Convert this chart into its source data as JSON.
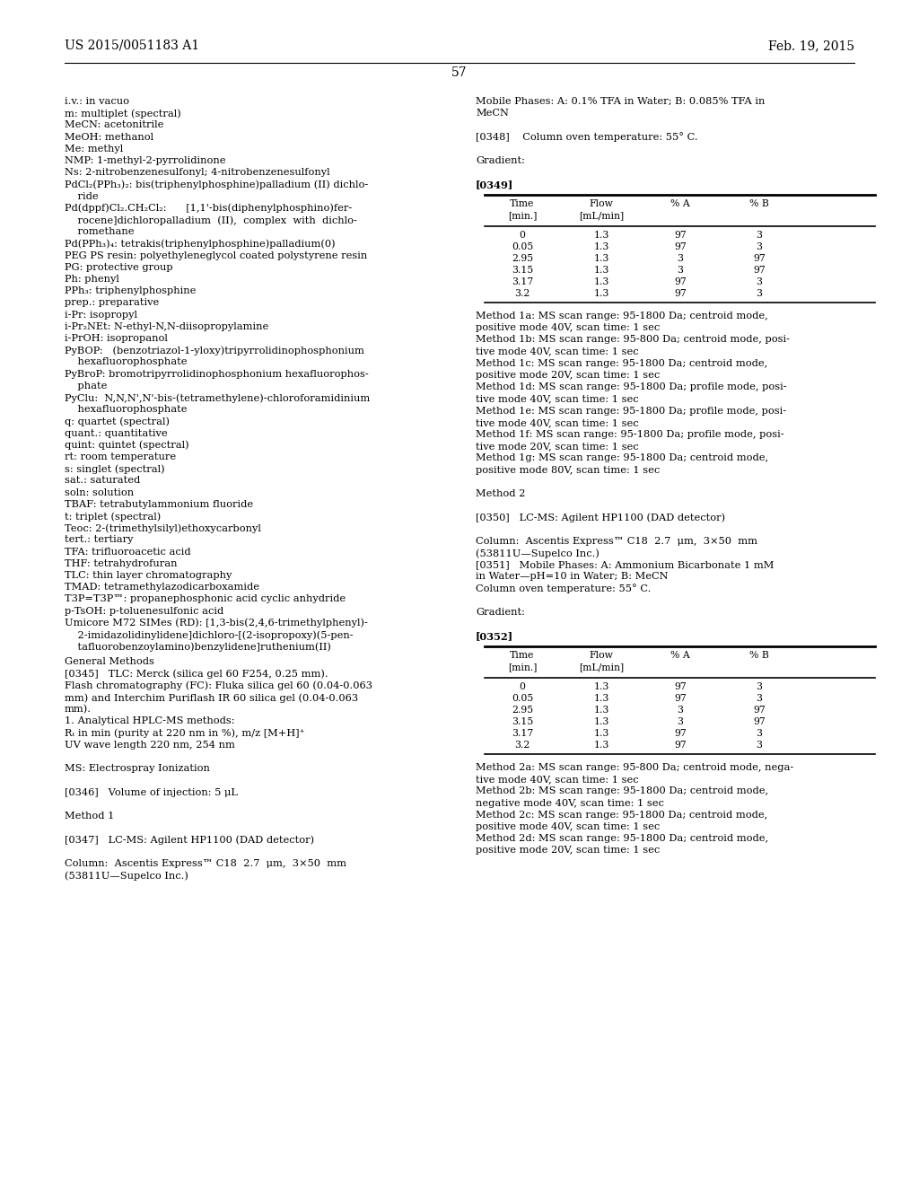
{
  "page_number": "57",
  "patent_number": "US 2015/0051183 A1",
  "patent_date": "Feb. 19, 2015",
  "bg_color": "#ffffff",
  "left_col_lines": [
    "i.v.: in vacuo",
    "m: multiplet (spectral)",
    "MeCN: acetonitrile",
    "MeOH: methanol",
    "Me: methyl",
    "NMP: 1-methyl-2-pyrrolidinone",
    "Ns: 2-nitrobenzenesulfonyl; 4-nitrobenzenesulfonyl",
    "PdCl₂(PPh₃)₂: bis(triphenylphosphine)palladium (II) dichlo-",
    "    ride",
    "Pd(dppf)Cl₂.CH₂Cl₂:      [1,1'-bis(diphenylphosphino)fer-",
    "    rocene]dichloropalladium  (II),  complex  with  dichlo-",
    "    romethane",
    "Pd(PPh₃)₄: tetrakis(triphenylphosphine)palladium(0)",
    "PEG PS resin: polyethyleneglycol coated polystyrene resin",
    "PG: protective group",
    "Ph: phenyl",
    "PPh₃: triphenylphosphine",
    "prep.: preparative",
    "i-Pr: isopropyl",
    "i-Pr₂NEt: N-ethyl-N,N-diisopropylamine",
    "i-PrOH: isopropanol",
    "PyBOP:   (benzotriazol-1-yloxy)tripyrrolidinophosphonium",
    "    hexafluorophosphate",
    "PyBroP: bromotripyrrolidinophosphonium hexafluorophos-",
    "    phate",
    "PyClu:  N,N,N',N'-bis-(tetramethylene)-chloroforamidinium",
    "    hexafluorophosphate",
    "q: quartet (spectral)",
    "quant.: quantitative",
    "quint: quintet (spectral)",
    "rt: room temperature",
    "s: singlet (spectral)",
    "sat.: saturated",
    "soln: solution",
    "TBAF: tetrabutylammonium fluoride",
    "t: triplet (spectral)",
    "Teoc: 2-(trimethylsilyl)ethoxycarbonyl",
    "tert.: tertiary",
    "TFA: trifluoroacetic acid",
    "THF: tetrahydrofuran",
    "TLC: thin layer chromatography",
    "TMAD: tetramethylazodicarboxamide",
    "T3P=T3P™: propanephosphonic acid cyclic anhydride",
    "p-TsOH: p-toluenesulfonic acid",
    "Umicore M72 SIMes (RD): [1,3-bis(2,4,6-trimethylphenyl)-",
    "    2-imidazolidinylidene]dichloro-[(2-isopropoxy)(5-pen-",
    "    tafluorobenzoylamino)benzylidene]ruthenium(II)"
  ],
  "gm_lines": [
    "General Methods",
    "[0345]   TLC: Merck (silica gel 60 F254, 0.25 mm).",
    "Flash chromatography (FC): Fluka silica gel 60 (0.04-0.063",
    "mm) and Interchim Puriflash IR 60 silica gel (0.04-0.063",
    "mm).",
    "1. Analytical HPLC-MS methods:",
    "Rₜ in min (purity at 220 nm in %), m/z [M+H]⁺",
    "UV wave length 220 nm, 254 nm",
    "",
    "MS: Electrospray Ionization",
    "",
    "[0346]   Volume of injection: 5 μL",
    "",
    "Method 1",
    "",
    "[0347]   LC-MS: Agilent HP1100 (DAD detector)",
    "",
    "Column:  Ascentis Express™ C18  2.7  μm,  3×50  mm",
    "(53811U—Supelco Inc.)"
  ],
  "right_lines_top": [
    "Mobile Phases: A: 0.1% TFA in Water; B: 0.085% TFA in",
    "MeCN",
    "",
    "[0348]    Column oven temperature: 55° C.",
    "",
    "Gradient:",
    "",
    "[0349]"
  ],
  "table1_data": [
    [
      "0",
      "1.3",
      "97",
      "3"
    ],
    [
      "0.05",
      "1.3",
      "97",
      "3"
    ],
    [
      "2.95",
      "1.3",
      "3",
      "97"
    ],
    [
      "3.15",
      "1.3",
      "3",
      "97"
    ],
    [
      "3.17",
      "1.3",
      "97",
      "3"
    ],
    [
      "3.2",
      "1.3",
      "97",
      "3"
    ]
  ],
  "method1_lines": [
    "Method 1a: MS scan range: 95-1800 Da; centroid mode,",
    "positive mode 40V, scan time: 1 sec",
    "Method 1b: MS scan range: 95-800 Da; centroid mode, posi-",
    "tive mode 40V, scan time: 1 sec",
    "Method 1c: MS scan range: 95-1800 Da; centroid mode,",
    "positive mode 20V, scan time: 1 sec",
    "Method 1d: MS scan range: 95-1800 Da; profile mode, posi-",
    "tive mode 40V, scan time: 1 sec",
    "Method 1e: MS scan range: 95-1800 Da; profile mode, posi-",
    "tive mode 40V, scan time: 1 sec",
    "Method 1f: MS scan range: 95-1800 Da; profile mode, posi-",
    "tive mode 20V, scan time: 1 sec",
    "Method 1g: MS scan range: 95-1800 Da; centroid mode,",
    "positive mode 80V, scan time: 1 sec"
  ],
  "method2_block": [
    "",
    "Method 2",
    "",
    "[0350]   LC-MS: Agilent HP1100 (DAD detector)",
    "",
    "Column:  Ascentis Express™ C18  2.7  μm,  3×50  mm",
    "(53811U—Supelco Inc.)"
  ],
  "para0351_lines": [
    "[0351]   Mobile Phases: A: Ammonium Bicarbonate 1 mM",
    "in Water—pH=10 in Water; B: MeCN",
    "Column oven temperature: 55° C."
  ],
  "gradient2_lines": [
    "",
    "Gradient:",
    "",
    "[0352]"
  ],
  "table2_data": [
    [
      "0",
      "1.3",
      "97",
      "3"
    ],
    [
      "0.05",
      "1.3",
      "97",
      "3"
    ],
    [
      "2.95",
      "1.3",
      "3",
      "97"
    ],
    [
      "3.15",
      "1.3",
      "3",
      "97"
    ],
    [
      "3.17",
      "1.3",
      "97",
      "3"
    ],
    [
      "3.2",
      "1.3",
      "97",
      "3"
    ]
  ],
  "method2_lines": [
    "Method 2a: MS scan range: 95-800 Da; centroid mode, nega-",
    "tive mode 40V, scan time: 1 sec",
    "Method 2b: MS scan range: 95-1800 Da; centroid mode,",
    "negative mode 40V, scan time: 1 sec",
    "Method 2c: MS scan range: 95-1800 Da; centroid mode,",
    "positive mode 40V, scan time: 1 sec",
    "Method 2d: MS scan range: 95-1800 Da; centroid mode,",
    "positive mode 20V, scan time: 1 sec"
  ],
  "table_headers": [
    "Time\n[min.]",
    "Flow\n[mL/min]",
    "% A",
    "% B"
  ]
}
